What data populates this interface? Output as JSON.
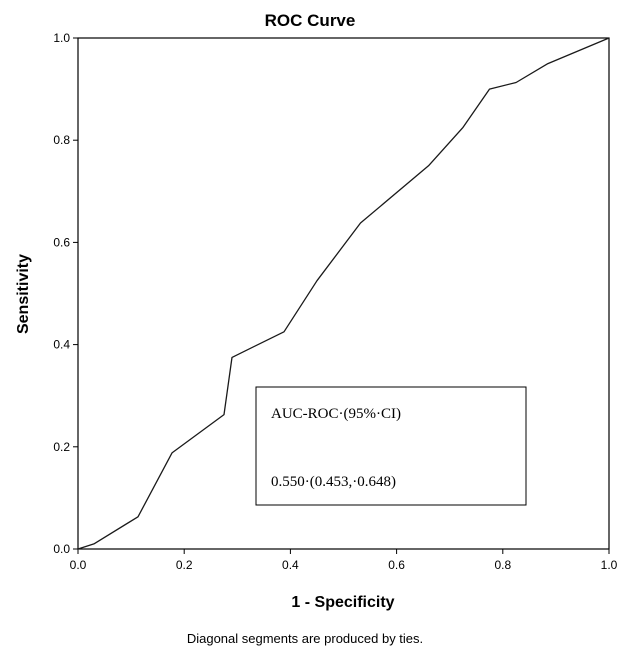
{
  "chart_data": {
    "type": "line",
    "title": "ROC Curve",
    "xlabel": "1 - Specificity",
    "ylabel": "Sensitivity",
    "xlim": [
      0.0,
      1.0
    ],
    "ylim": [
      0.0,
      1.0
    ],
    "x_ticks": [
      "0.0",
      "0.2",
      "0.4",
      "0.6",
      "0.8",
      "1.0"
    ],
    "y_ticks": [
      "0.0",
      "0.2",
      "0.4",
      "0.6",
      "0.8",
      "1.0"
    ],
    "grid": false,
    "series": [
      {
        "x": [
          0.0,
          0.03,
          0.113,
          0.177,
          0.275,
          0.29,
          0.388,
          0.45,
          0.532,
          0.66,
          0.725,
          0.775,
          0.825,
          0.885,
          1.0
        ],
        "y": [
          0.0,
          0.01,
          0.063,
          0.188,
          0.263,
          0.375,
          0.425,
          0.525,
          0.638,
          0.75,
          0.825,
          0.9,
          0.913,
          0.95,
          1.0
        ],
        "color": "#1a1a1a"
      }
    ],
    "annotation": {
      "line1": "AUC-ROC·(95%·CI)",
      "line2": "0.550·(0.453,·0.648)"
    },
    "footnote": "Diagonal segments are produced by ties."
  }
}
